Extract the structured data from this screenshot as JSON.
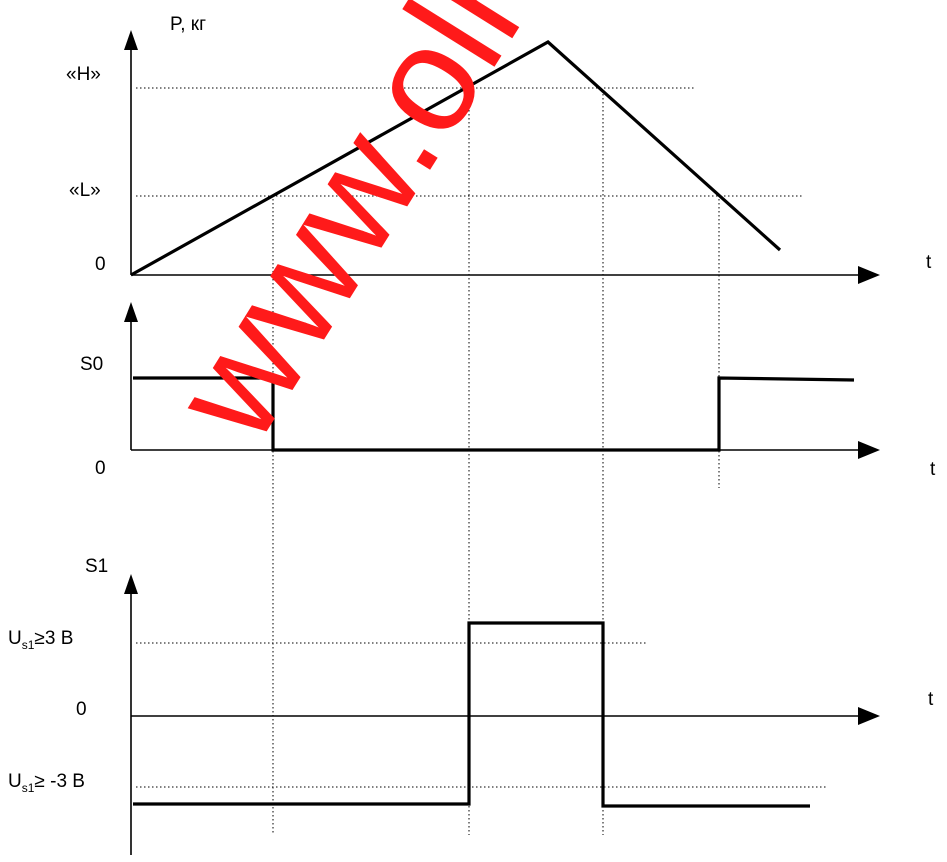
{
  "graph_top": {
    "y_axis_label": "P, кг",
    "level_high": "«H»",
    "level_low": "«L»",
    "origin": "0",
    "x_axis_label": "t"
  },
  "graph_mid": {
    "y_axis_label": "S0",
    "origin": "0",
    "x_axis_label": "t"
  },
  "graph_bottom": {
    "y_axis_label": "S1",
    "level_high_main": "U",
    "level_high_sub": "s1",
    "level_high_rest": "≥3 В",
    "zero": "0",
    "level_low_main": "U",
    "level_low_sub": "s1",
    "level_low_rest": "≥ -3 В",
    "x_axis_label": "t"
  },
  "watermark": "www.olm.ru",
  "colors": {
    "watermark": "#ff1a1a",
    "lines": "#000000"
  }
}
